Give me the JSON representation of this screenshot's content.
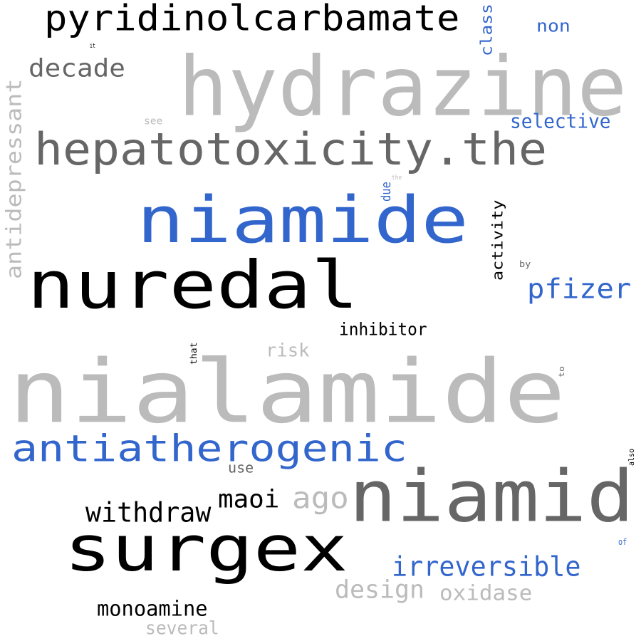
{
  "colors": {
    "black": "#000000",
    "dark_gray": "#666666",
    "light_gray": "#bbbbbb",
    "blue": "#3366cc"
  },
  "words": [
    {
      "id": "nialamide",
      "text": "nialamide",
      "color": "light_gray",
      "orientation": "horizontal"
    },
    {
      "id": "hydrazine",
      "text": "hydrazine",
      "color": "light_gray",
      "orientation": "horizontal"
    },
    {
      "id": "nuredal",
      "text": "nuredal",
      "color": "black",
      "orientation": "horizontal"
    },
    {
      "id": "niamide",
      "text": "niamide",
      "color": "blue",
      "orientation": "horizontal"
    },
    {
      "id": "surgex",
      "text": "surgex",
      "color": "black",
      "orientation": "horizontal"
    },
    {
      "id": "niamid",
      "text": "niamid",
      "color": "dark_gray",
      "orientation": "horizontal"
    },
    {
      "id": "hepatotoxicity",
      "text": "hepatotoxicity.the",
      "color": "dark_gray",
      "orientation": "horizontal"
    },
    {
      "id": "antiatherogenic",
      "text": "antiatherogenic",
      "color": "blue",
      "orientation": "horizontal"
    },
    {
      "id": "pyridinolcarbamate",
      "text": "pyridinolcarbamate",
      "color": "black",
      "orientation": "horizontal"
    },
    {
      "id": "antidepressant",
      "text": "antidepressant",
      "color": "light_gray",
      "orientation": "vertical"
    },
    {
      "id": "decade",
      "text": "decade",
      "color": "dark_gray",
      "orientation": "horizontal"
    },
    {
      "id": "pfizer",
      "text": "pfizer",
      "color": "blue",
      "orientation": "horizontal"
    },
    {
      "id": "irreversible",
      "text": "irreversible",
      "color": "blue",
      "orientation": "horizontal"
    },
    {
      "id": "withdraw",
      "text": "withdraw",
      "color": "black",
      "orientation": "horizontal"
    },
    {
      "id": "ago",
      "text": "ago",
      "color": "light_gray",
      "orientation": "horizontal"
    },
    {
      "id": "maoi",
      "text": "maoi",
      "color": "black",
      "orientation": "horizontal"
    },
    {
      "id": "design",
      "text": "design",
      "color": "light_gray",
      "orientation": "horizontal"
    },
    {
      "id": "monoamine",
      "text": "monoamine",
      "color": "black",
      "orientation": "horizontal"
    },
    {
      "id": "oxidase",
      "text": "oxidase",
      "color": "light_gray",
      "orientation": "horizontal"
    },
    {
      "id": "activity",
      "text": "activity",
      "color": "black",
      "orientation": "vertical"
    },
    {
      "id": "selective",
      "text": "selective",
      "color": "blue",
      "orientation": "horizontal"
    },
    {
      "id": "inhibitor",
      "text": "inhibitor",
      "color": "black",
      "orientation": "horizontal"
    },
    {
      "id": "several",
      "text": "several",
      "color": "light_gray",
      "orientation": "horizontal"
    },
    {
      "id": "class",
      "text": "class",
      "color": "blue",
      "orientation": "vertical"
    },
    {
      "id": "non",
      "text": "non",
      "color": "blue",
      "orientation": "horizontal"
    },
    {
      "id": "risk",
      "text": "risk",
      "color": "light_gray",
      "orientation": "horizontal"
    },
    {
      "id": "use",
      "text": "use",
      "color": "dark_gray",
      "orientation": "horizontal"
    },
    {
      "id": "due",
      "text": "due",
      "color": "blue",
      "orientation": "vertical"
    },
    {
      "id": "that",
      "text": "that",
      "color": "black",
      "orientation": "vertical"
    },
    {
      "id": "see",
      "text": "see",
      "color": "light_gray",
      "orientation": "horizontal"
    },
    {
      "id": "by",
      "text": "by",
      "color": "dark_gray",
      "orientation": "horizontal"
    },
    {
      "id": "to",
      "text": "to",
      "color": "dark_gray",
      "orientation": "vertical"
    },
    {
      "id": "also",
      "text": "also",
      "color": "black",
      "orientation": "vertical"
    },
    {
      "id": "of",
      "text": "of",
      "color": "blue",
      "orientation": "horizontal"
    },
    {
      "id": "it",
      "text": "it",
      "color": "black",
      "orientation": "horizontal"
    },
    {
      "id": "the",
      "text": "the",
      "color": "light_gray",
      "orientation": "horizontal"
    }
  ]
}
